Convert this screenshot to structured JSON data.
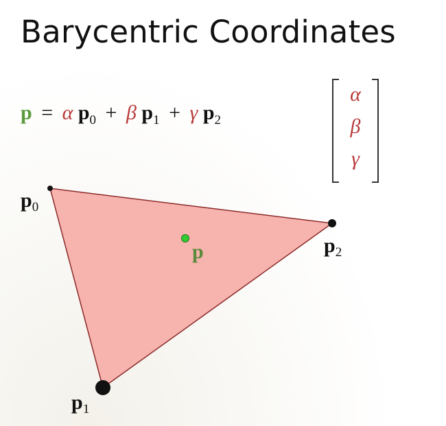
{
  "title": "Barycentric Coordinates",
  "colors": {
    "point_p": "#5a9a3c",
    "greek": "#b83a3a",
    "text": "#111111",
    "triangle_fill": "#f7b3ae",
    "triangle_stroke": "#8b2a2a",
    "vertex": "#111111",
    "interior_point": "#33cc33"
  },
  "equation": {
    "lhs": "p",
    "equals": "=",
    "terms": [
      {
        "coef": "α",
        "vec": "p",
        "sub": "0"
      },
      {
        "coef": "β",
        "vec": "p",
        "sub": "1"
      },
      {
        "coef": "γ",
        "vec": "p",
        "sub": "2"
      }
    ],
    "plus": "+"
  },
  "vector": [
    "α",
    "β",
    "γ"
  ],
  "diagram": {
    "vertices": [
      {
        "label": "p",
        "sub": "0"
      },
      {
        "label": "p",
        "sub": "1"
      },
      {
        "label": "p",
        "sub": "2"
      }
    ],
    "interior_point": {
      "label": "p"
    }
  }
}
